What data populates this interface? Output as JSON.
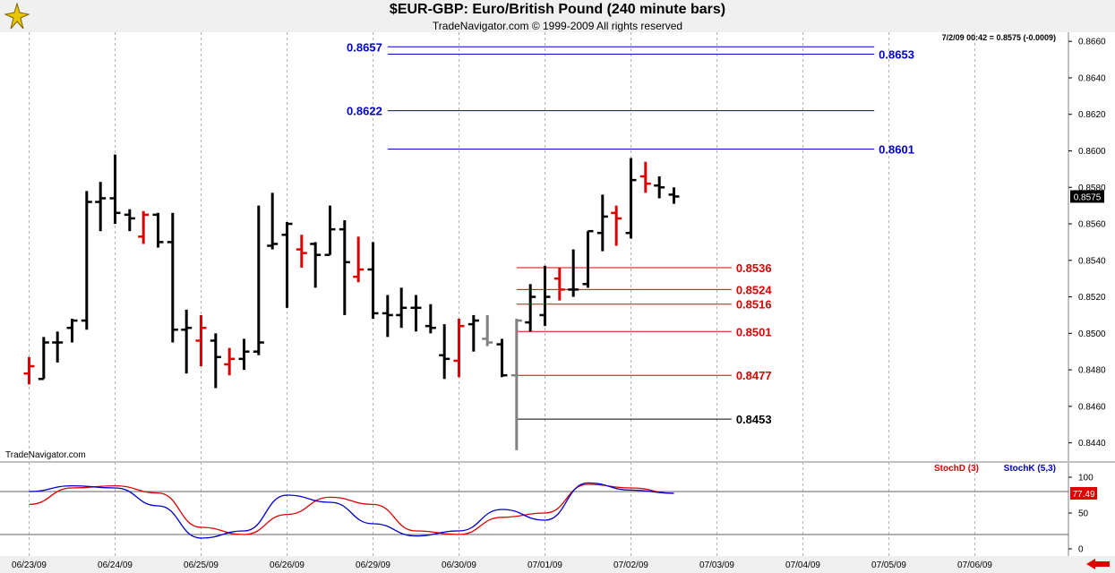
{
  "header": {
    "title": "$EUR-GBP:  Euro/British Pound  (240 minute bars)",
    "subtitle": "TradeNavigator.com © 1999-2009 All rights reserved",
    "status_readout": "7/2/09 00:42 = 0.8575 (-0.0009)",
    "watermark": "TradeNavigator.com"
  },
  "colors": {
    "up_bar": "#000000",
    "down_bar": "#e00000",
    "ghost_bar": "#808080",
    "resistance": "#0000cc",
    "support": "#dd0000",
    "stoch_d": "#dd0000",
    "stoch_k": "#0000cc"
  },
  "chart_data": [
    {
      "type": "ohlc",
      "x_ticks": [
        "06/23/09",
        "06/24/09",
        "06/25/09",
        "06/26/09",
        "06/29/09",
        "06/30/09",
        "07/01/09",
        "07/02/09",
        "07/03/09",
        "07/04/09",
        "07/05/09",
        "07/06/09"
      ],
      "ylim": [
        0.843,
        0.8665
      ],
      "y_ticks": [
        "0.8440",
        "0.8460",
        "0.8480",
        "0.8500",
        "0.8520",
        "0.8540",
        "0.8560",
        "0.8580",
        "0.8600",
        "0.8620",
        "0.8640",
        "0.8660"
      ],
      "last_price": "0.8575",
      "bars": [
        {
          "x": 0.0,
          "o": 0.8478,
          "h": 0.8487,
          "l": 0.8472,
          "c": 0.8482,
          "color": "down"
        },
        {
          "x": 0.17,
          "o": 0.8475,
          "h": 0.8498,
          "l": 0.8475,
          "c": 0.8495,
          "color": "up"
        },
        {
          "x": 0.33,
          "o": 0.8495,
          "h": 0.8501,
          "l": 0.8484,
          "c": 0.8495,
          "color": "up"
        },
        {
          "x": 0.5,
          "o": 0.8503,
          "h": 0.8508,
          "l": 0.8495,
          "c": 0.8507,
          "color": "up"
        },
        {
          "x": 0.67,
          "o": 0.8507,
          "h": 0.8578,
          "l": 0.8502,
          "c": 0.8572,
          "color": "up"
        },
        {
          "x": 0.83,
          "o": 0.8572,
          "h": 0.8583,
          "l": 0.8556,
          "c": 0.8574,
          "color": "up"
        },
        {
          "x": 1.0,
          "o": 0.8574,
          "h": 0.8598,
          "l": 0.856,
          "c": 0.8566,
          "color": "up"
        },
        {
          "x": 1.17,
          "o": 0.8565,
          "h": 0.8568,
          "l": 0.8556,
          "c": 0.8563,
          "color": "up"
        },
        {
          "x": 1.33,
          "o": 0.8553,
          "h": 0.8567,
          "l": 0.8549,
          "c": 0.8565,
          "color": "down"
        },
        {
          "x": 1.5,
          "o": 0.8565,
          "h": 0.8566,
          "l": 0.8547,
          "c": 0.855,
          "color": "up"
        },
        {
          "x": 1.67,
          "o": 0.855,
          "h": 0.8566,
          "l": 0.8495,
          "c": 0.8502,
          "color": "up"
        },
        {
          "x": 1.83,
          "o": 0.8502,
          "h": 0.8513,
          "l": 0.8478,
          "c": 0.8503,
          "color": "up"
        },
        {
          "x": 2.0,
          "o": 0.8496,
          "h": 0.851,
          "l": 0.8482,
          "c": 0.8503,
          "color": "down"
        },
        {
          "x": 2.17,
          "o": 0.8496,
          "h": 0.85,
          "l": 0.847,
          "c": 0.8487,
          "color": "up"
        },
        {
          "x": 2.33,
          "o": 0.8483,
          "h": 0.8492,
          "l": 0.8477,
          "c": 0.8486,
          "color": "down"
        },
        {
          "x": 2.5,
          "o": 0.8486,
          "h": 0.8497,
          "l": 0.848,
          "c": 0.849,
          "color": "up"
        },
        {
          "x": 2.67,
          "o": 0.849,
          "h": 0.857,
          "l": 0.8488,
          "c": 0.8495,
          "color": "up"
        },
        {
          "x": 2.83,
          "o": 0.8548,
          "h": 0.8577,
          "l": 0.8546,
          "c": 0.8549,
          "color": "up"
        },
        {
          "x": 3.0,
          "o": 0.8554,
          "h": 0.8561,
          "l": 0.8514,
          "c": 0.856,
          "color": "up"
        },
        {
          "x": 3.17,
          "o": 0.8546,
          "h": 0.8554,
          "l": 0.8536,
          "c": 0.8544,
          "color": "down"
        },
        {
          "x": 3.33,
          "o": 0.8549,
          "h": 0.855,
          "l": 0.8525,
          "c": 0.8543,
          "color": "up"
        },
        {
          "x": 3.5,
          "o": 0.8543,
          "h": 0.857,
          "l": 0.8543,
          "c": 0.8557,
          "color": "up"
        },
        {
          "x": 3.67,
          "o": 0.8557,
          "h": 0.8562,
          "l": 0.851,
          "c": 0.8539,
          "color": "up"
        },
        {
          "x": 3.83,
          "o": 0.8531,
          "h": 0.8553,
          "l": 0.8528,
          "c": 0.8535,
          "color": "down"
        },
        {
          "x": 4.0,
          "o": 0.8535,
          "h": 0.855,
          "l": 0.8508,
          "c": 0.8511,
          "color": "up"
        },
        {
          "x": 4.17,
          "o": 0.8511,
          "h": 0.8521,
          "l": 0.8498,
          "c": 0.851,
          "color": "up"
        },
        {
          "x": 4.33,
          "o": 0.851,
          "h": 0.8525,
          "l": 0.8503,
          "c": 0.8514,
          "color": "up"
        },
        {
          "x": 4.5,
          "o": 0.8514,
          "h": 0.8521,
          "l": 0.8501,
          "c": 0.8514,
          "color": "up"
        },
        {
          "x": 4.67,
          "o": 0.8504,
          "h": 0.8516,
          "l": 0.85,
          "c": 0.8503,
          "color": "up"
        },
        {
          "x": 4.83,
          "o": 0.8488,
          "h": 0.8505,
          "l": 0.8475,
          "c": 0.8486,
          "color": "up"
        },
        {
          "x": 5.0,
          "o": 0.8485,
          "h": 0.8508,
          "l": 0.8476,
          "c": 0.8504,
          "color": "down"
        },
        {
          "x": 5.17,
          "o": 0.8505,
          "h": 0.851,
          "l": 0.849,
          "c": 0.8507,
          "color": "up"
        },
        {
          "x": 5.33,
          "o": 0.8497,
          "h": 0.851,
          "l": 0.8493,
          "c": 0.8495,
          "color": "ghost"
        },
        {
          "x": 5.5,
          "o": 0.8494,
          "h": 0.8497,
          "l": 0.8476,
          "c": 0.8477,
          "color": "up"
        },
        {
          "x": 5.67,
          "o": 0.8477,
          "h": 0.8508,
          "l": 0.8436,
          "c": 0.8507,
          "color": "ghost"
        },
        {
          "x": 5.83,
          "o": 0.8506,
          "h": 0.8527,
          "l": 0.8501,
          "c": 0.852,
          "color": "up"
        },
        {
          "x": 6.0,
          "o": 0.851,
          "h": 0.8537,
          "l": 0.8504,
          "c": 0.852,
          "color": "up"
        },
        {
          "x": 6.17,
          "o": 0.853,
          "h": 0.8536,
          "l": 0.8518,
          "c": 0.8524,
          "color": "down"
        },
        {
          "x": 6.33,
          "o": 0.8524,
          "h": 0.8546,
          "l": 0.852,
          "c": 0.8524,
          "color": "up"
        },
        {
          "x": 6.5,
          "o": 0.8527,
          "h": 0.8556,
          "l": 0.8525,
          "c": 0.8556,
          "color": "up"
        },
        {
          "x": 6.67,
          "o": 0.8555,
          "h": 0.8576,
          "l": 0.8545,
          "c": 0.8564,
          "color": "up"
        },
        {
          "x": 6.83,
          "o": 0.8566,
          "h": 0.857,
          "l": 0.8548,
          "c": 0.8563,
          "color": "down"
        },
        {
          "x": 7.0,
          "o": 0.8555,
          "h": 0.8596,
          "l": 0.8552,
          "c": 0.8584,
          "color": "up"
        },
        {
          "x": 7.17,
          "o": 0.8586,
          "h": 0.8594,
          "l": 0.8577,
          "c": 0.8582,
          "color": "down"
        },
        {
          "x": 7.33,
          "o": 0.8581,
          "h": 0.8586,
          "l": 0.8574,
          "c": 0.858,
          "color": "up"
        },
        {
          "x": 7.5,
          "o": 0.8576,
          "h": 0.858,
          "l": 0.8571,
          "c": 0.8575,
          "color": "up"
        }
      ],
      "levels": [
        {
          "label": "0.8657",
          "value": 0.8657,
          "kind": "resistance",
          "from": 4.17,
          "to": 9.83,
          "label_side": "left"
        },
        {
          "label": "0.8653",
          "value": 0.8653,
          "kind": "resistance",
          "from": 4.17,
          "to": 9.83,
          "label_side": "right"
        },
        {
          "label": "0.8622",
          "value": 0.8622,
          "kind": "resistance",
          "from": 4.17,
          "to": 9.83,
          "label_side": "left"
        },
        {
          "label": "0.8601",
          "value": 0.8601,
          "kind": "resistance",
          "from": 4.17,
          "to": 9.83,
          "label_side": "right"
        },
        {
          "label": "0.8536",
          "value": 0.8536,
          "kind": "support",
          "from": 5.67,
          "to": 8.17,
          "label_side": "right"
        },
        {
          "label": "0.8524",
          "value": 0.8524,
          "kind": "support",
          "from": 5.67,
          "to": 8.17,
          "label_side": "right"
        },
        {
          "label": "0.8516",
          "value": 0.8516,
          "kind": "support",
          "from": 5.67,
          "to": 8.17,
          "label_side": "right"
        },
        {
          "label": "0.8501",
          "value": 0.8501,
          "kind": "support",
          "from": 5.67,
          "to": 8.17,
          "label_side": "right"
        },
        {
          "label": "0.8477",
          "value": 0.8477,
          "kind": "support",
          "from": 5.67,
          "to": 8.17,
          "label_side": "right"
        },
        {
          "label": "0.8453",
          "value": 0.8453,
          "kind": "neutral",
          "from": 5.67,
          "to": 8.17,
          "label_side": "right"
        }
      ]
    },
    {
      "type": "line",
      "ylim": [
        -10,
        120
      ],
      "y_ticks": [
        "0",
        "50",
        "100"
      ],
      "reference_lines": [
        20,
        80
      ],
      "last_value": "77.49",
      "series": [
        {
          "name": "StochD (3)",
          "color": "#dd0000",
          "points": [
            [
              0,
              62
            ],
            [
              0.5,
              85
            ],
            [
              1,
              88
            ],
            [
              1.5,
              78
            ],
            [
              2,
              30
            ],
            [
              2.5,
              20
            ],
            [
              3,
              48
            ],
            [
              3.5,
              72
            ],
            [
              4,
              62
            ],
            [
              4.5,
              25
            ],
            [
              5,
              20
            ],
            [
              5.5,
              44
            ],
            [
              6,
              50
            ],
            [
              6.5,
              90
            ],
            [
              7,
              85
            ],
            [
              7.5,
              77.49
            ]
          ]
        },
        {
          "name": "StochK (5,3)",
          "color": "#0000cc",
          "points": [
            [
              0,
              80
            ],
            [
              0.5,
              88
            ],
            [
              1,
              85
            ],
            [
              1.5,
              60
            ],
            [
              2,
              15
            ],
            [
              2.5,
              25
            ],
            [
              3,
              75
            ],
            [
              3.5,
              65
            ],
            [
              4,
              35
            ],
            [
              4.5,
              18
            ],
            [
              5,
              25
            ],
            [
              5.5,
              55
            ],
            [
              6,
              40
            ],
            [
              6.5,
              92
            ],
            [
              7,
              82
            ],
            [
              7.5,
              77.49
            ]
          ]
        }
      ]
    }
  ]
}
